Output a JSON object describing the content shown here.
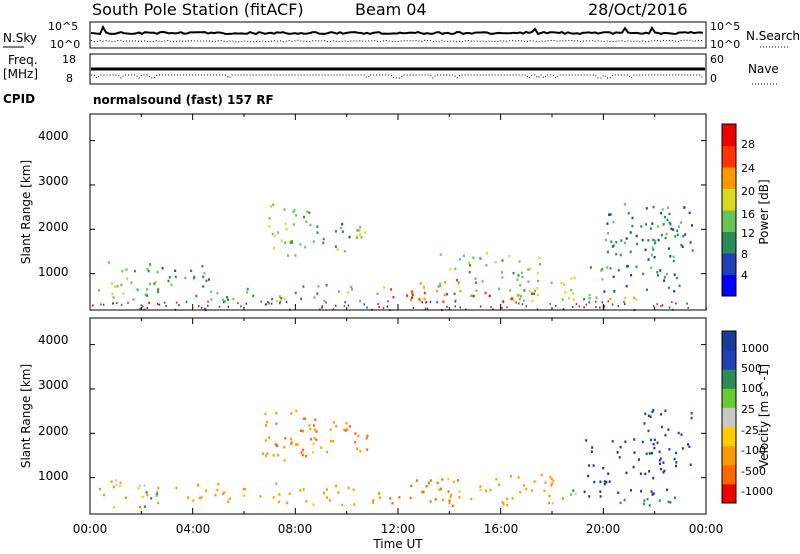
{
  "header": {
    "station": "South Pole Station (fitACF)",
    "beam": "Beam 04",
    "date": "28/Oct/2016"
  },
  "noise_panel": {
    "left_label": "N.Sky",
    "left_ticks": [
      "10^5",
      "10^0"
    ],
    "right_label": "N.Search",
    "right_ticks": [
      "10^5",
      "10^0"
    ]
  },
  "freq_panel": {
    "left_label_1": "Freq.",
    "left_label_2": "[MHz]",
    "left_ticks": [
      "18",
      "8"
    ],
    "right_label": "Nave",
    "right_ticks": [
      "60",
      "0"
    ]
  },
  "cpid": {
    "label": "CPID",
    "text": "normalsound (fast) 157 RF"
  },
  "x_axis": {
    "title": "Time UT",
    "ticks": [
      "00:00",
      "04:00",
      "08:00",
      "12:00",
      "16:00",
      "20:00",
      "00:00"
    ]
  },
  "chart_data": [
    {
      "type": "heatmap",
      "title": "",
      "xlabel": "Time UT",
      "ylabel": "Slant Range [km]",
      "xlim": [
        0,
        24
      ],
      "ylim": [
        180,
        4600
      ],
      "y_ticks": [
        "4000",
        "3000",
        "2000",
        "1000"
      ],
      "colorbar_label": "Power [dB]",
      "colorbar_ticks": [
        "28",
        "24",
        "20",
        "16",
        "12",
        "8",
        "4"
      ],
      "colorscale": [
        "#0000ff",
        "#1f3fb4",
        "#2e8b57",
        "#66c45a",
        "#d9d920",
        "#ff9900",
        "#ff3300",
        "#ee0000"
      ],
      "regions": [
        {
          "t": [
            0.3,
            2.6
          ],
          "r": [
            350,
            1400
          ],
          "value": 14
        },
        {
          "t": [
            1.6,
            2.3
          ],
          "r": [
            330,
            520
          ],
          "value": 26
        },
        {
          "t": [
            2.6,
            4.8
          ],
          "r": [
            420,
            1200
          ],
          "value": 10
        },
        {
          "t": [
            4.4,
            6.8
          ],
          "r": [
            400,
            800
          ],
          "value": 12
        },
        {
          "t": [
            6.6,
            8.0
          ],
          "r": [
            1400,
            2600
          ],
          "value": 16
        },
        {
          "t": [
            7.6,
            8.6
          ],
          "r": [
            1600,
            2600
          ],
          "value": 12
        },
        {
          "t": [
            8.6,
            10.5
          ],
          "r": [
            1600,
            2200
          ],
          "value": 10
        },
        {
          "t": [
            9.6,
            10.7
          ],
          "r": [
            1500,
            2200
          ],
          "value": 16
        },
        {
          "t": [
            7.0,
            11.5
          ],
          "r": [
            400,
            800
          ],
          "value": 14
        },
        {
          "t": [
            11.6,
            14.5
          ],
          "r": [
            380,
            900
          ],
          "value": 22
        },
        {
          "t": [
            12.3,
            14.0
          ],
          "r": [
            320,
            600
          ],
          "value": 28
        },
        {
          "t": [
            13.5,
            17.5
          ],
          "r": [
            400,
            1500
          ],
          "value": 14
        },
        {
          "t": [
            14.5,
            17.5
          ],
          "r": [
            360,
            600
          ],
          "value": 26
        },
        {
          "t": [
            16.5,
            19.0
          ],
          "r": [
            400,
            1100
          ],
          "value": 16
        },
        {
          "t": [
            19.2,
            20.2
          ],
          "r": [
            450,
            1300
          ],
          "value": 12
        },
        {
          "t": [
            19.5,
            22.8
          ],
          "r": [
            400,
            520
          ],
          "value": 22
        },
        {
          "t": [
            20.0,
            23.2
          ],
          "r": [
            600,
            2600
          ],
          "value": 10
        },
        {
          "t": [
            21.5,
            23.5
          ],
          "r": [
            1300,
            2600
          ],
          "value": 8
        }
      ]
    },
    {
      "type": "heatmap",
      "title": "",
      "xlabel": "Time UT",
      "ylabel": "Slant Range [km]",
      "xlim": [
        0,
        24
      ],
      "ylim": [
        180,
        4600
      ],
      "y_ticks": [
        "4000",
        "3000",
        "2000",
        "1000"
      ],
      "colorbar_label": "Velocity [m s^-1]",
      "colorbar_ticks": [
        "1000",
        "500",
        "100",
        "25",
        "-25",
        "-100",
        "-500",
        "-1000"
      ],
      "colorscale": [
        "#ee0000",
        "#ff6600",
        "#ff9900",
        "#ffcc00",
        "#c8c8c8",
        "#66cc33",
        "#2e8b57",
        "#1f3fb4",
        "#1a3a9a"
      ],
      "regions": [
        {
          "t": [
            0.3,
            2.6
          ],
          "r": [
            350,
            1000
          ],
          "value": -50
        },
        {
          "t": [
            1.5,
            2.8
          ],
          "r": [
            350,
            700
          ],
          "value": 150
        },
        {
          "t": [
            2.6,
            6.8
          ],
          "r": [
            450,
            900
          ],
          "value": -200
        },
        {
          "t": [
            6.6,
            8.2
          ],
          "r": [
            1400,
            2600
          ],
          "value": -200
        },
        {
          "t": [
            7.0,
            8.8
          ],
          "r": [
            1500,
            2400
          ],
          "value": -700
        },
        {
          "t": [
            8.4,
            10.8
          ],
          "r": [
            1600,
            2300
          ],
          "value": -200
        },
        {
          "t": [
            9.8,
            10.8
          ],
          "r": [
            1600,
            2200
          ],
          "value": -700
        },
        {
          "t": [
            7.0,
            11.5
          ],
          "r": [
            400,
            900
          ],
          "value": -200
        },
        {
          "t": [
            11.6,
            14.5
          ],
          "r": [
            380,
            1000
          ],
          "value": -700
        },
        {
          "t": [
            13.5,
            18.5
          ],
          "r": [
            400,
            1100
          ],
          "value": -200
        },
        {
          "t": [
            18.0,
            19.0
          ],
          "r": [
            400,
            800
          ],
          "value": 0
        },
        {
          "t": [
            19.2,
            23.5
          ],
          "r": [
            400,
            600
          ],
          "value": 300
        },
        {
          "t": [
            19.2,
            22.8
          ],
          "r": [
            600,
            1900
          ],
          "value": 1100
        },
        {
          "t": [
            21.5,
            23.5
          ],
          "r": [
            1300,
            2600
          ],
          "value": 700
        }
      ]
    }
  ]
}
